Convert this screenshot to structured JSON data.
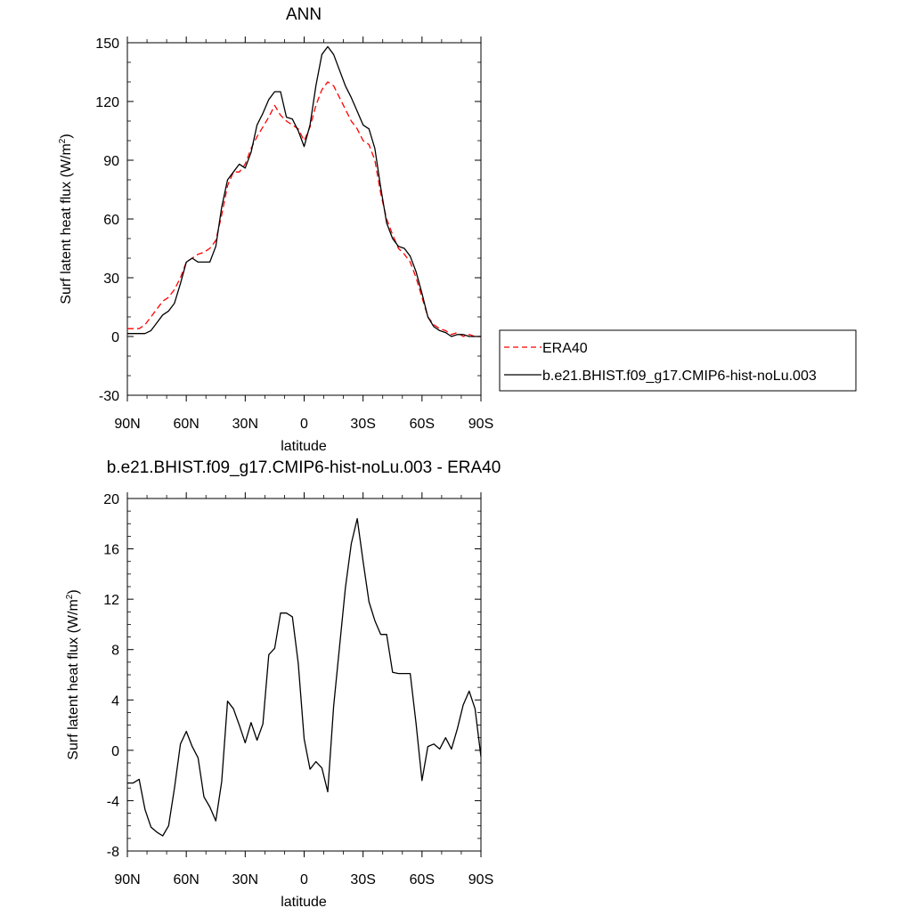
{
  "chart_data": [
    {
      "type": "line",
      "title": "ANN",
      "xlabel": "latitude",
      "ylabel": "Surf latent heat flux (W/m²)",
      "ylabel_main": "Surf latent heat flux (W/m",
      "ylabel_sup": "2",
      "ylabel_close": ")",
      "xlim": [
        90,
        -90
      ],
      "ylim": [
        -30,
        150
      ],
      "xticks": [
        90,
        60,
        30,
        0,
        -30,
        -60,
        -90
      ],
      "xtick_labels": [
        "90N",
        "60N",
        "30N",
        "0",
        "30S",
        "60S",
        "90S"
      ],
      "yticks": [
        -30,
        0,
        30,
        60,
        90,
        120,
        150
      ],
      "ytick_labels": [
        "-30",
        "0",
        "30",
        "60",
        "90",
        "120",
        "150"
      ],
      "legend": {
        "placement": "outside-right",
        "entries": [
          "ERA40",
          "b.e21.BHIST.f09_g17.CMIP6-hist-noLu.003"
        ]
      },
      "series": [
        {
          "name": "ERA40",
          "color": "#ff0000",
          "dash": "dashed",
          "x": [
            90,
            87,
            84,
            81,
            78,
            75,
            72,
            69,
            66,
            63,
            60,
            57,
            54,
            51,
            48,
            45,
            42,
            39,
            36,
            33,
            30,
            27,
            24,
            21,
            18,
            15,
            12,
            9,
            6,
            3,
            0,
            -3,
            -6,
            -9,
            -12,
            -15,
            -18,
            -21,
            -24,
            -27,
            -30,
            -33,
            -36,
            -39,
            -42,
            -45,
            -48,
            -51,
            -54,
            -57,
            -60,
            -63,
            -66,
            -69,
            -72,
            -75,
            -78,
            -81,
            -84,
            -87,
            -90
          ],
          "y": [
            4,
            4,
            4,
            6,
            10,
            14,
            18,
            20,
            24,
            30,
            38,
            40,
            42,
            43,
            45,
            49,
            62,
            77,
            84,
            84,
            88,
            96,
            102,
            107,
            112,
            118,
            113,
            110,
            108,
            106,
            100,
            107,
            118,
            126,
            130,
            128,
            122,
            116,
            110,
            106,
            100,
            98,
            90,
            73,
            60,
            52,
            45,
            42,
            38,
            30,
            20,
            10,
            6,
            4,
            3,
            1,
            2,
            0,
            1,
            0,
            0
          ]
        },
        {
          "name": "b.e21.BHIST.f09_g17.CMIP6-hist-noLu.003",
          "color": "#000000",
          "dash": "solid",
          "x": [
            90,
            87,
            84,
            81,
            78,
            75,
            72,
            69,
            66,
            63,
            60,
            57,
            54,
            51,
            48,
            45,
            42,
            39,
            36,
            33,
            30,
            27,
            24,
            21,
            18,
            15,
            12,
            9,
            6,
            3,
            0,
            -3,
            -6,
            -9,
            -12,
            -15,
            -18,
            -21,
            -24,
            -27,
            -30,
            -33,
            -36,
            -39,
            -42,
            -45,
            -48,
            -51,
            -54,
            -57,
            -60,
            -63,
            -66,
            -69,
            -72,
            -75,
            -78,
            -81,
            -84,
            -87,
            -90
          ],
          "y": [
            1.5,
            1.5,
            1.5,
            1.5,
            3,
            7,
            11,
            13,
            17,
            27,
            38,
            40,
            38,
            38,
            38,
            46,
            66,
            80,
            84,
            88,
            86,
            94,
            108,
            114,
            121,
            125,
            125,
            112,
            111,
            105,
            97,
            108,
            128,
            144,
            148,
            144,
            136,
            128,
            122,
            115,
            108,
            106,
            96,
            76,
            58,
            50,
            46,
            45,
            41,
            33,
            22,
            10,
            5,
            3,
            2,
            0,
            1,
            1,
            0,
            0,
            0
          ]
        }
      ]
    },
    {
      "type": "line",
      "title": "b.e21.BHIST.f09_g17.CMIP6-hist-noLu.003 - ERA40",
      "xlabel": "latitude",
      "ylabel": "Surf latent heat flux (W/m²)",
      "ylabel_main": "Surf latent heat flux (W/m",
      "ylabel_sup": "2",
      "ylabel_close": ")",
      "xlim": [
        90,
        -90
      ],
      "ylim": [
        -8,
        20
      ],
      "xticks": [
        90,
        60,
        30,
        0,
        -30,
        -60,
        -90
      ],
      "xtick_labels": [
        "90N",
        "60N",
        "30N",
        "0",
        "30S",
        "60S",
        "90S"
      ],
      "yticks": [
        -8,
        -4,
        0,
        4,
        8,
        12,
        16,
        20
      ],
      "ytick_labels": [
        "-8",
        "-4",
        "0",
        "4",
        "8",
        "12",
        "16",
        "20"
      ],
      "series": [
        {
          "color": "#000000",
          "dash": "solid",
          "x": [
            90,
            87,
            84,
            81,
            78,
            75,
            72,
            69,
            66,
            63,
            60,
            57,
            54,
            51,
            48,
            45,
            42,
            39,
            36,
            33,
            30,
            27,
            24,
            21,
            18,
            15,
            12,
            9,
            6,
            3,
            0,
            -3,
            -6,
            -9,
            -12,
            -15,
            -18,
            -21,
            -24,
            -27,
            -30,
            -33,
            -36,
            -39,
            -42,
            -45,
            -48,
            -51,
            -54,
            -57,
            -60,
            -63,
            -66,
            -69,
            -72,
            -75,
            -78,
            -81,
            -84,
            -87,
            -90
          ],
          "y": [
            -2.6,
            -2.6,
            -2.3,
            -4.7,
            -6.1,
            -6.5,
            -6.8,
            -6.0,
            -3.0,
            0.5,
            1.5,
            0.3,
            -0.6,
            -3.7,
            -4.5,
            -5.6,
            -2.5,
            3.9,
            3.3,
            2.0,
            0.6,
            2.2,
            0.8,
            2.1,
            7.6,
            8.1,
            10.9,
            10.9,
            10.6,
            6.9,
            0.9,
            -1.5,
            -0.9,
            -1.4,
            -3.3,
            3.5,
            8.2,
            12.9,
            16.4,
            18.4,
            15.0,
            11.8,
            10.3,
            9.2,
            9.2,
            6.2,
            6.1,
            6.1,
            6.1,
            2.1,
            -2.4,
            0.3,
            0.5,
            0.1,
            1.0,
            0.1,
            1.7,
            3.6,
            4.7,
            3.3,
            -0.5
          ]
        }
      ]
    }
  ]
}
